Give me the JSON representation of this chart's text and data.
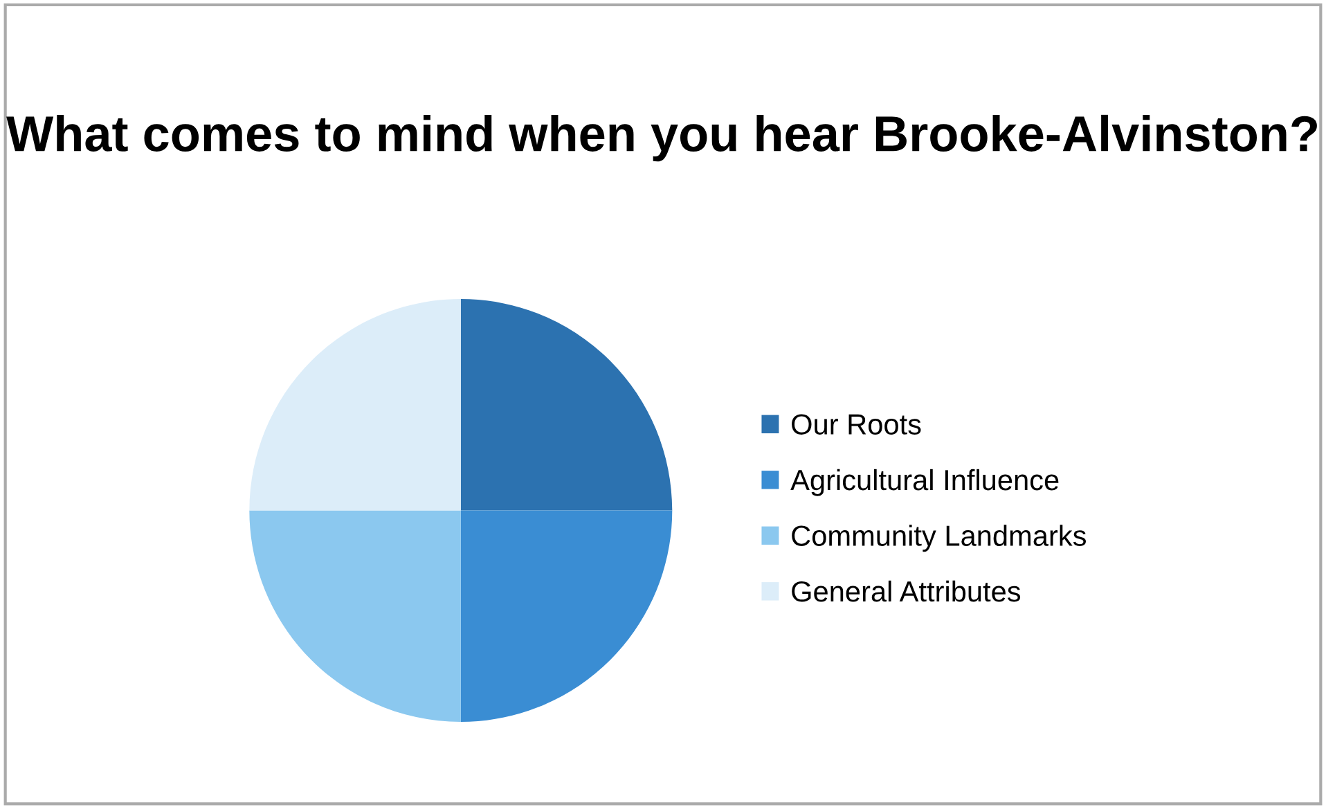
{
  "chart_data": {
    "type": "pie",
    "title": "What comes to mind when you hear Brooke-Alvinston?",
    "categories": [
      "Our Roots",
      "Agricultural Influence",
      "Community Landmarks",
      "General Attributes"
    ],
    "values": [
      25,
      25,
      25,
      25
    ],
    "colors": [
      "#2c72b0",
      "#3a8dd3",
      "#8bc8ef",
      "#dcedf9"
    ],
    "legend": "right"
  }
}
